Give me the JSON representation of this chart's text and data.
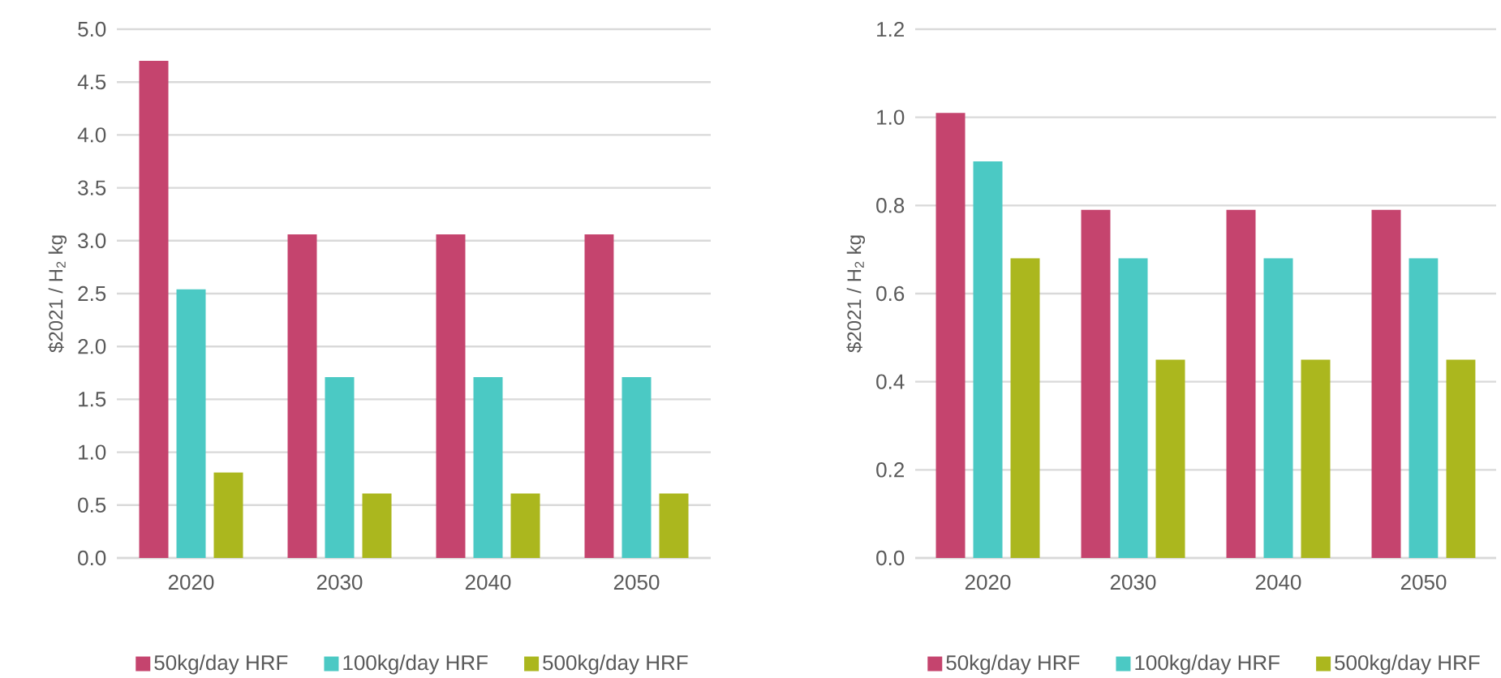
{
  "chart_data": [
    {
      "type": "bar",
      "ylabel": "$2021 / H$_{2}$ kg",
      "categories": [
        "2020",
        "2030",
        "2040",
        "2050"
      ],
      "series": [
        {
          "name": "50kg/day HRF",
          "color": "#c5446e",
          "values": [
            4.7,
            3.06,
            3.06,
            3.06
          ]
        },
        {
          "name": "100kg/day HRF",
          "color": "#4bc9c4",
          "values": [
            2.54,
            1.71,
            1.71,
            1.71
          ]
        },
        {
          "name": "500kg/day HRF",
          "color": "#abb71e",
          "values": [
            0.81,
            0.61,
            0.61,
            0.61
          ]
        }
      ],
      "ylim": [
        0,
        5
      ],
      "yticks": [
        {
          "value": 0,
          "label": "0.0"
        },
        {
          "value": 0.5,
          "label": "0.5"
        },
        {
          "value": 1,
          "label": "1.0"
        },
        {
          "value": 1.5,
          "label": "1.5"
        },
        {
          "value": 2,
          "label": "2.0"
        },
        {
          "value": 2.5,
          "label": "2.5"
        },
        {
          "value": 3,
          "label": "3.0"
        },
        {
          "value": 3.5,
          "label": "3.5"
        },
        {
          "value": 4,
          "label": "4.0"
        },
        {
          "value": 4.5,
          "label": "4.5"
        },
        {
          "value": 5,
          "label": "5.0"
        }
      ],
      "grid": "y",
      "legend": "bottom"
    },
    {
      "type": "bar",
      "ylabel": "$2021 / H$_{2}$ kg",
      "categories": [
        "2020",
        "2030",
        "2040",
        "2050"
      ],
      "series": [
        {
          "name": "50kg/day HRF",
          "color": "#c5446e",
          "values": [
            1.01,
            0.79,
            0.79,
            0.79
          ]
        },
        {
          "name": "100kg/day HRF",
          "color": "#4bc9c4",
          "values": [
            0.9,
            0.68,
            0.68,
            0.68
          ]
        },
        {
          "name": "500kg/day HRF",
          "color": "#abb71e",
          "values": [
            0.68,
            0.45,
            0.45,
            0.45
          ]
        }
      ],
      "ylim": [
        0,
        1.2
      ],
      "yticks": [
        {
          "value": 0,
          "label": "0.0"
        },
        {
          "value": 0.2,
          "label": "0.2"
        },
        {
          "value": 0.4,
          "label": "0.4"
        },
        {
          "value": 0.6,
          "label": "0.6"
        },
        {
          "value": 0.8,
          "label": "0.8"
        },
        {
          "value": 1,
          "label": "1.0"
        },
        {
          "value": 1.2,
          "label": "1.2"
        }
      ],
      "grid": "y",
      "legend": "bottom"
    }
  ]
}
